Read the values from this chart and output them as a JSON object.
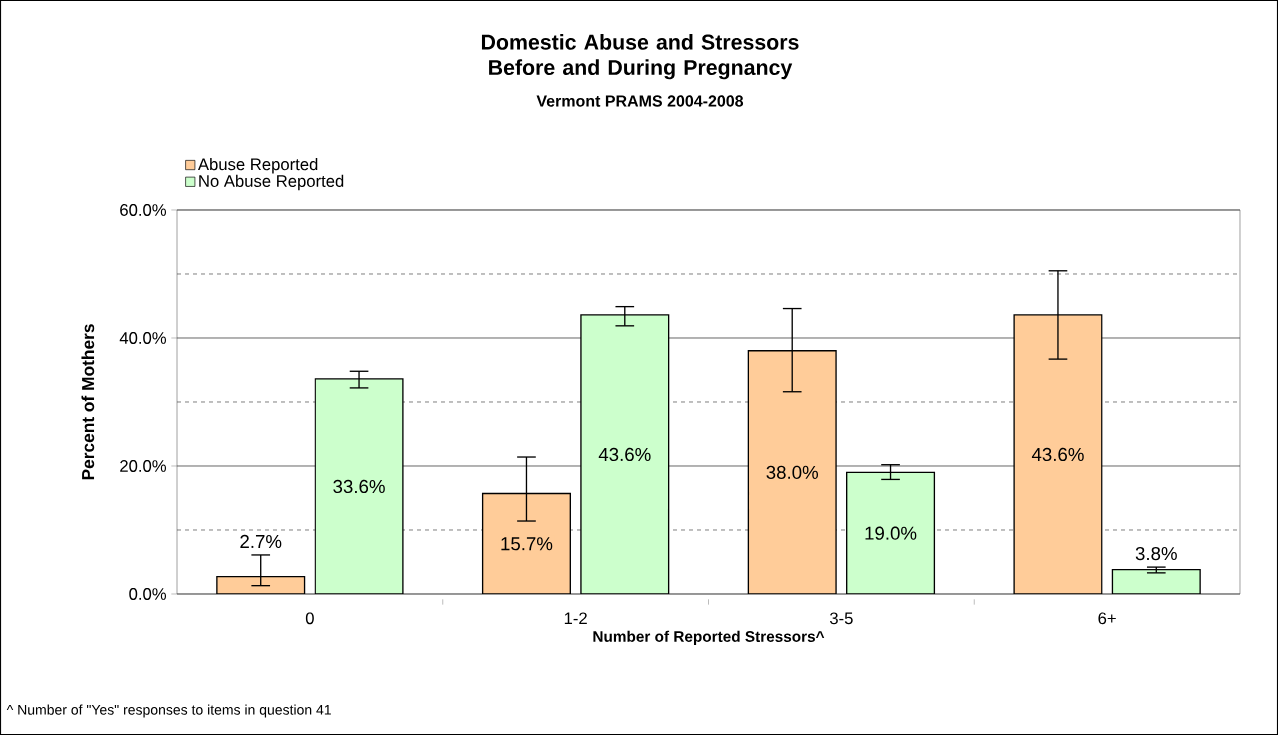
{
  "chart_data": {
    "type": "bar",
    "title": "Domestic Abuse and Stressors Before and During Pregnancy",
    "subtitle": "Vermont PRAMS 2004-2008",
    "xlabel": "Number of Reported Stressors^",
    "ylabel": "Percent of Mothers",
    "categories": [
      "0",
      "1-2",
      "3-5",
      "6+"
    ],
    "series": [
      {
        "name": "Abuse Reported",
        "color": "#ffcc99",
        "values": [
          2.7,
          15.7,
          38.0,
          43.6
        ],
        "value_labels": [
          "2.7%",
          "15.7%",
          "38.0%",
          "43.6%"
        ],
        "errors": [
          [
            1.3,
            6.1
          ],
          [
            11.4,
            21.4
          ],
          [
            31.6,
            44.6
          ],
          [
            36.7,
            50.5
          ]
        ]
      },
      {
        "name": "No Abuse Reported",
        "color": "#ccffcc",
        "values": [
          33.6,
          43.6,
          19.0,
          3.8
        ],
        "value_labels": [
          "33.6%",
          "43.6%",
          "19.0%",
          "3.8%"
        ],
        "errors": [
          [
            32.2,
            34.8
          ],
          [
            41.9,
            44.9
          ],
          [
            17.9,
            20.2
          ],
          [
            3.3,
            4.2
          ]
        ]
      }
    ],
    "ylim": [
      0,
      60
    ],
    "yticks": [
      {
        "value": 0,
        "label": "0.0%"
      },
      {
        "value": 20,
        "label": "20.0%"
      },
      {
        "value": 40,
        "label": "40.0%"
      },
      {
        "value": 60,
        "label": "60.0%"
      }
    ],
    "grid": "y",
    "legend": "top left",
    "annotations": [
      "^ Number of \"Yes\" responses to items in question 41"
    ]
  }
}
